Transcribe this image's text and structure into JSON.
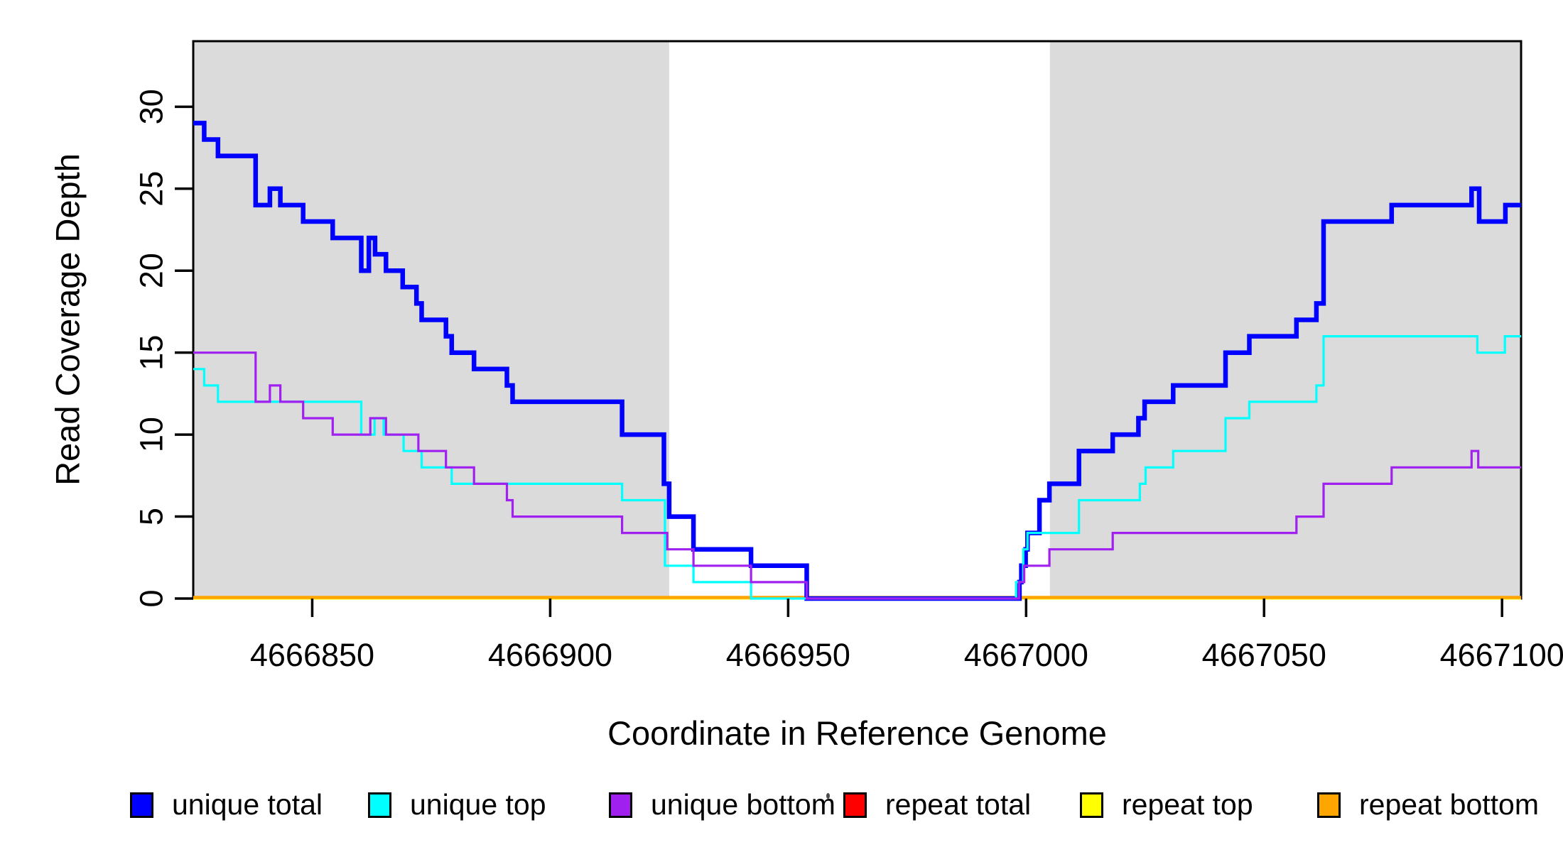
{
  "chart_data": {
    "type": "line",
    "subtype": "step-after-coverage-plot",
    "title": "",
    "xlabel": "Coordinate in Reference Genome",
    "ylabel": "Read Coverage Depth",
    "xlim": [
      4666825,
      4667104
    ],
    "ylim": [
      0,
      34
    ],
    "x_ticks": [
      4666850,
      4666900,
      4666950,
      4667000,
      4667050,
      4667100
    ],
    "y_ticks": [
      0,
      5,
      10,
      15,
      20,
      25,
      30
    ],
    "y_tick_labels_rotated": true,
    "grid": false,
    "box": true,
    "background_color": "#ffffff",
    "shaded_regions": [
      {
        "x_start": 4666825,
        "x_end": 4666925,
        "color": "#dbdbdb"
      },
      {
        "x_start": 4667005,
        "x_end": 4667104,
        "color": "#dbdbdb"
      }
    ],
    "draw_order": [
      "repeat total",
      "repeat top",
      "repeat bottom",
      "unique total",
      "unique top",
      "unique bottom"
    ],
    "series": [
      {
        "name": "unique total",
        "color": "#0000ff",
        "width": 6.5,
        "points": [
          [
            4666825,
            29
          ],
          [
            4666827.3,
            28
          ],
          [
            4666830.2,
            27
          ],
          [
            4666838.1,
            24
          ],
          [
            4666841.1,
            25
          ],
          [
            4666843.3,
            24
          ],
          [
            4666848.1,
            23
          ],
          [
            4666854.3,
            22
          ],
          [
            4666860.3,
            20
          ],
          [
            4666861.9,
            22
          ],
          [
            4666863.2,
            21
          ],
          [
            4666865.5,
            20
          ],
          [
            4666869,
            19
          ],
          [
            4666871.9,
            18
          ],
          [
            4666873,
            17
          ],
          [
            4666878.1,
            16
          ],
          [
            4666879.3,
            15
          ],
          [
            4666884,
            14
          ],
          [
            4666890.9,
            13
          ],
          [
            4666892.1,
            12
          ],
          [
            4666915.1,
            10
          ],
          [
            4666923.9,
            7
          ],
          [
            4666925,
            5
          ],
          [
            4666930.1,
            3
          ],
          [
            4666942.2,
            2
          ],
          [
            4666953.9,
            0
          ],
          [
            4666998.6,
            1
          ],
          [
            4666999,
            2
          ],
          [
            4666999.9,
            3
          ],
          [
            4667000.3,
            4
          ],
          [
            4667002.8,
            6
          ],
          [
            4667004.9,
            7
          ],
          [
            4667011.1,
            9
          ],
          [
            4667018.2,
            10
          ],
          [
            4667023.6,
            11
          ],
          [
            4667024.9,
            12
          ],
          [
            4667030.9,
            13
          ],
          [
            4667041.9,
            15
          ],
          [
            4667046.9,
            16
          ],
          [
            4667056.8,
            17
          ],
          [
            4667061,
            18
          ],
          [
            4667062.5,
            23
          ],
          [
            4667076.8,
            24
          ],
          [
            4667093.6,
            25
          ],
          [
            4667095.2,
            23
          ],
          [
            4667100.7,
            24
          ]
        ]
      },
      {
        "name": "unique top",
        "color": "#00ffff",
        "width": 3.2,
        "points": [
          [
            4666825,
            14
          ],
          [
            4666827.3,
            13
          ],
          [
            4666830.2,
            12
          ],
          [
            4666860.3,
            10
          ],
          [
            4666863.1,
            11
          ],
          [
            4666865,
            10
          ],
          [
            4666869.2,
            9
          ],
          [
            4666873,
            8
          ],
          [
            4666879.3,
            7
          ],
          [
            4666915.1,
            6
          ],
          [
            4666924.1,
            2
          ],
          [
            4666930.1,
            1
          ],
          [
            4666942.2,
            0
          ],
          [
            4666997.9,
            1
          ],
          [
            4666999.4,
            3
          ],
          [
            4667000.3,
            4
          ],
          [
            4667011.1,
            6
          ],
          [
            4667023.9,
            7
          ],
          [
            4667025.1,
            8
          ],
          [
            4667030.9,
            9
          ],
          [
            4667041.9,
            11
          ],
          [
            4667046.9,
            12
          ],
          [
            4667061,
            13
          ],
          [
            4667062.5,
            16
          ],
          [
            4667094.8,
            15
          ],
          [
            4667100.6,
            16
          ]
        ]
      },
      {
        "name": "unique bottom",
        "color": "#a020f0",
        "width": 3.2,
        "points": [
          [
            4666825,
            15
          ],
          [
            4666838.1,
            12
          ],
          [
            4666841.1,
            13
          ],
          [
            4666843.3,
            12
          ],
          [
            4666848.1,
            11
          ],
          [
            4666854.3,
            10
          ],
          [
            4666862.2,
            11
          ],
          [
            4666865.5,
            10
          ],
          [
            4666872.3,
            9
          ],
          [
            4666878.1,
            8
          ],
          [
            4666884,
            7
          ],
          [
            4666890.9,
            6
          ],
          [
            4666892.1,
            5
          ],
          [
            4666915.1,
            4
          ],
          [
            4666924.6,
            3
          ],
          [
            4666930.1,
            2
          ],
          [
            4666942.2,
            1
          ],
          [
            4666953.9,
            0
          ],
          [
            4666998.5,
            1
          ],
          [
            4666999.6,
            2
          ],
          [
            4667004.9,
            3
          ],
          [
            4667018.2,
            4
          ],
          [
            4667056.8,
            5
          ],
          [
            4667062.5,
            7
          ],
          [
            4667076.8,
            8
          ],
          [
            4667093.6,
            9
          ],
          [
            4667095,
            8
          ]
        ]
      },
      {
        "name": "repeat total",
        "color": "#ff0000",
        "width": 3,
        "points": [
          [
            4666825,
            0
          ]
        ]
      },
      {
        "name": "repeat top",
        "color": "#ffff00",
        "width": 3,
        "points": [
          [
            4666825,
            0
          ]
        ]
      },
      {
        "name": "repeat bottom",
        "color": "#ffa500",
        "width": 4.5,
        "points": [
          [
            4666825,
            0
          ]
        ]
      }
    ],
    "legend": {
      "position": "bottom",
      "entries": [
        "unique total",
        "unique top",
        "unique bottom",
        "repeat total",
        "repeat top",
        "repeat bottom"
      ]
    }
  }
}
